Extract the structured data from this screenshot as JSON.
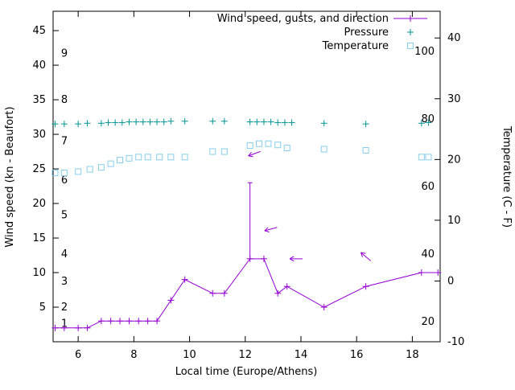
{
  "chart_data": {
    "type": "line",
    "title": "",
    "xlabel": "Local time (Europe/Athens)",
    "ylabel_left": "Wind speed (kn - Beaufort)",
    "ylabel_right": "Temperature (C - F)",
    "axes": {
      "x": {
        "min": 5.1,
        "max": 19.0,
        "ticks": [
          6,
          8,
          10,
          12,
          14,
          16,
          18
        ]
      },
      "y_left": {
        "min": 0,
        "max": 47.8,
        "ticks": [
          5,
          10,
          15,
          20,
          25,
          30,
          35,
          40,
          45
        ],
        "beaufort_labels": [
          {
            "label": "1",
            "kn": 2.6
          },
          {
            "label": "2",
            "kn": 5.0
          },
          {
            "label": "3",
            "kn": 8.7
          },
          {
            "label": "4",
            "kn": 12.7
          },
          {
            "label": "5",
            "kn": 18.3
          },
          {
            "label": "6",
            "kn": 23.4
          },
          {
            "label": "7",
            "kn": 29.0
          },
          {
            "label": "8",
            "kn": 35.0
          },
          {
            "label": "9",
            "kn": 41.7
          }
        ]
      },
      "y_right": {
        "min": -10,
        "max": 44.4,
        "ticks": [
          -10,
          0,
          10,
          20,
          30,
          40
        ],
        "fahrenheit_labels": [
          {
            "label": "20",
            "f": 20
          },
          {
            "label": "40",
            "f": 40
          },
          {
            "label": "60",
            "f": 60
          },
          {
            "label": "80",
            "f": 80
          },
          {
            "label": "100",
            "f": 100
          }
        ]
      }
    },
    "legend": [
      {
        "label": "Wind speed, gusts, and direction",
        "series": "wind"
      },
      {
        "label": "Pressure",
        "series": "pressure"
      },
      {
        "label": "Temperature",
        "series": "temperature"
      }
    ],
    "colors": {
      "wind": "#9400d3",
      "pressure": "#009494",
      "temperature": "#87ceeb",
      "axis": "#000000"
    },
    "series": {
      "wind": {
        "x": [
          5.17,
          5.5,
          6.0,
          6.33,
          6.83,
          7.17,
          7.5,
          7.83,
          8.17,
          8.5,
          8.83,
          9.33,
          9.83,
          10.83,
          11.25,
          12.17,
          12.67,
          13.17,
          13.5,
          14.83,
          16.33,
          18.33,
          18.92
        ],
        "kn": [
          2,
          2,
          2,
          2,
          3,
          3,
          3,
          3,
          3,
          3,
          3,
          6,
          9,
          7,
          7,
          12,
          12,
          7,
          8,
          5,
          8,
          10,
          10
        ]
      },
      "gusts": [
        {
          "x": 12.17,
          "from": 12,
          "to": 23
        }
      ],
      "direction_arrows": [
        {
          "x": 12.33,
          "kn": 27.2,
          "angle_deg": 200
        },
        {
          "x": 12.92,
          "kn": 16.3,
          "angle_deg": 195
        },
        {
          "x": 13.83,
          "kn": 12.0,
          "angle_deg": 180
        },
        {
          "x": 16.33,
          "kn": 12.3,
          "angle_deg": 140
        }
      ],
      "pressure": {
        "x": [
          5.17,
          5.5,
          6.0,
          6.33,
          6.83,
          7.08,
          7.33,
          7.58,
          7.83,
          8.08,
          8.33,
          8.58,
          8.83,
          9.08,
          9.33,
          9.83,
          10.83,
          11.25,
          12.17,
          12.42,
          12.67,
          12.92,
          13.17,
          13.42,
          13.67,
          14.83,
          16.33,
          18.33,
          18.58
        ],
        "y_left": [
          31.5,
          31.5,
          31.5,
          31.6,
          31.6,
          31.7,
          31.7,
          31.7,
          31.8,
          31.8,
          31.8,
          31.8,
          31.8,
          31.8,
          31.9,
          31.9,
          31.9,
          31.9,
          31.8,
          31.8,
          31.8,
          31.8,
          31.7,
          31.7,
          31.7,
          31.6,
          31.5,
          31.6,
          31.7
        ]
      },
      "temperature": {
        "x": [
          5.17,
          5.5,
          6.0,
          6.42,
          6.83,
          7.17,
          7.5,
          7.83,
          8.17,
          8.5,
          8.92,
          9.33,
          9.83,
          10.83,
          11.25,
          12.17,
          12.5,
          12.83,
          13.17,
          13.5,
          14.83,
          16.33,
          18.33,
          18.58
        ],
        "c": [
          17.8,
          17.8,
          18.0,
          18.4,
          18.7,
          19.3,
          19.9,
          20.2,
          20.4,
          20.4,
          20.4,
          20.4,
          20.4,
          21.3,
          21.3,
          22.3,
          22.6,
          22.6,
          22.4,
          21.9,
          21.7,
          21.5,
          20.4,
          20.4
        ]
      }
    }
  }
}
